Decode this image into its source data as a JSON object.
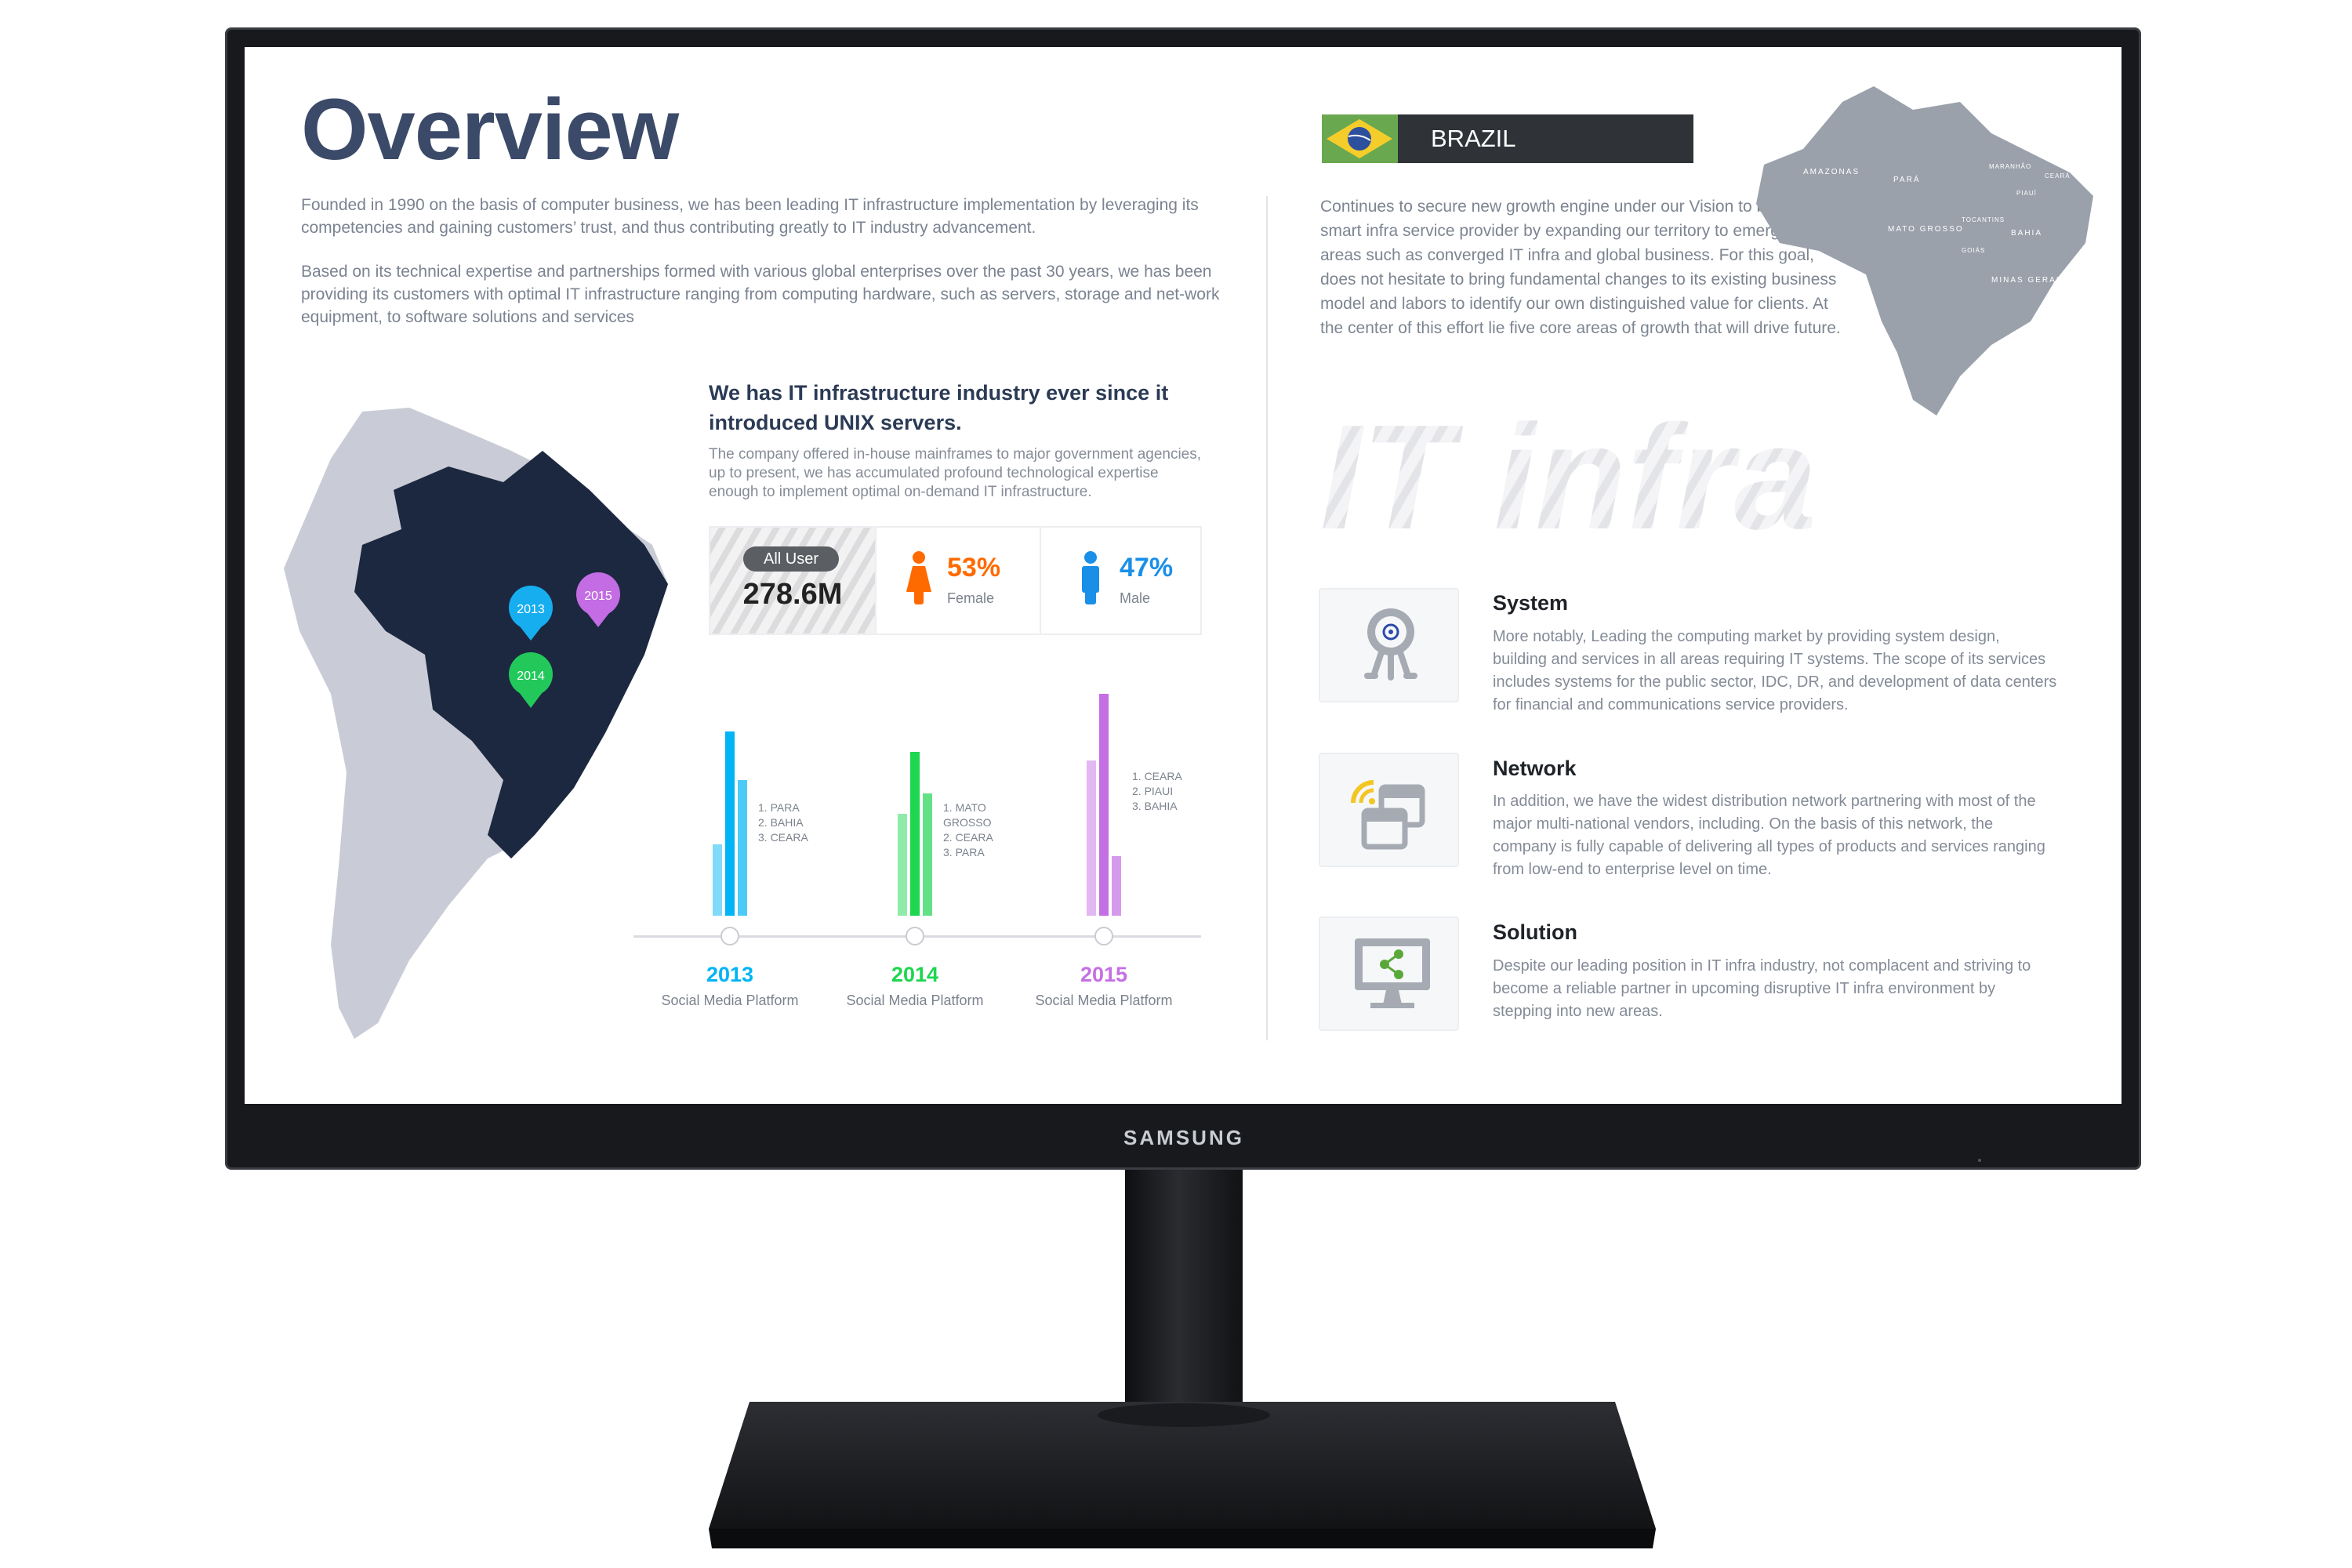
{
  "brand": "SAMSUNG",
  "overview": {
    "title": "Overview",
    "para1": "Founded in 1990 on the basis of computer business, we has been leading IT infrastructure implementation by leveraging its competencies and gaining customers’ trust, and thus contributing greatly to IT industry advancement.",
    "para2": "Based on its technical expertise and partnerships formed with various global enterprises over the past 30 years, we has been providing its customers with optimal IT infrastructure ranging from computing hardware, such as servers, storage and net-work equipment, to software solutions and services"
  },
  "map_pins": [
    "2013",
    "2015",
    "2014"
  ],
  "unix": {
    "heading": "We has IT infrastructure industry ever since it introduced UNIX servers.",
    "body": "The company offered in-house mainframes to major government agencies, up to present, we has accumulated profound technological expertise enough to implement optimal on-demand IT infrastructure."
  },
  "stats": {
    "all_user_label": "All User",
    "all_user_value": "278.6M",
    "female_pct": "53%",
    "female_label": "Female",
    "female_color": "#ff6a00",
    "male_pct": "47%",
    "male_label": "Male",
    "male_color": "#1a8fe8"
  },
  "chart_data": {
    "type": "bar",
    "categories": [
      "2013",
      "2014",
      "2015"
    ],
    "subtitle": "Social Media Platform",
    "groups": [
      {
        "year": "2013",
        "color": "#00b4f5",
        "values": [
          32,
          83,
          61
        ],
        "ranking": [
          "1. PARA",
          "2. BAHIA",
          "3. CEARA"
        ]
      },
      {
        "year": "2014",
        "color": "#1ed650",
        "values": [
          46,
          74,
          55
        ],
        "ranking": [
          "1. MATO GROSSO",
          "2. CEARA",
          "3. PARA"
        ]
      },
      {
        "year": "2015",
        "color": "#c56fe4",
        "values": [
          70,
          100,
          27
        ],
        "ranking": [
          "1. CEARA",
          "2. PIAUI",
          "3. BAHIA"
        ]
      }
    ]
  },
  "brazil": {
    "banner": "BRAZIL",
    "body": "Continues to secure new growth engine under our Vision to be the best smart infra service provider by expanding our territory to emerging areas such as converged IT infra and global business. For this goal, does not hesitate to bring fundamental changes to its existing business model and labors to identify our own distinguished value for clients. At the center of this effort lie five core areas of growth that will drive future.",
    "map_states": [
      "AMAZONAS",
      "PARÁ",
      "MATO GROSSO",
      "BAHIA",
      "MINAS GERAIS",
      "GOIÁS",
      "PIAUÍ",
      "CEARÁ",
      "MARANHÃO",
      "TOCANTINS"
    ],
    "watermark": "IT infra"
  },
  "areas": [
    {
      "title": "System",
      "icon": "webcam-target-icon",
      "body": "More notably, Leading the computing market by providing system design, building and services in all areas requiring IT systems. The scope of its services includes systems for the public sector, IDC, DR, and development of data centers for financial and communications service providers."
    },
    {
      "title": "Network",
      "icon": "network-windows-wifi-icon",
      "body": "In addition, we have the widest distribution network partnering with most of the major multi-national vendors, including. On the basis of this network, the company is fully capable of delivering all types of products and services ranging from low-end to enterprise level on time."
    },
    {
      "title": "Solution",
      "icon": "monitor-share-icon",
      "body": "Despite our leading position in IT infra industry, not complacent and striving to become a reliable partner in upcoming disruptive IT infra environment by stepping into new areas."
    }
  ]
}
